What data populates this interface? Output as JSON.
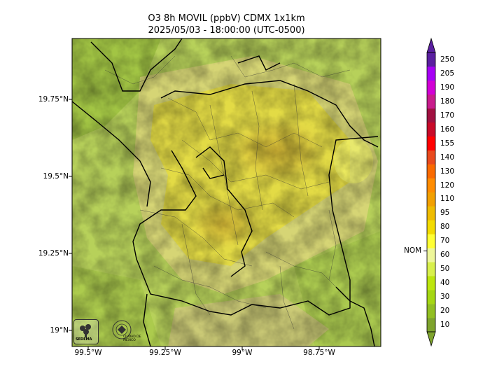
{
  "title_line1": "O3 8h MOVIL (ppbV) CDMX 1x1km",
  "title_line2": "2025/05/03 - 18:00:00 (UTC-0500)",
  "y_axis_labels": [
    "19.75°N",
    "19.5°N",
    "19.25°N",
    "19°N"
  ],
  "x_axis_labels": [
    "99.5°W",
    "99.25°W",
    "99°W",
    "98.75°W"
  ],
  "colorbar": {
    "ticks": [
      "10",
      "20",
      "30",
      "40",
      "50",
      "60",
      "70",
      "80",
      "95",
      "110",
      "120",
      "130",
      "140",
      "155",
      "160",
      "170",
      "180",
      "190",
      "205",
      "250"
    ],
    "colors": [
      "#7ea32d",
      "#92bf22",
      "#a5d713",
      "#bde60e",
      "#d8f04c",
      "#eef79a",
      "#ffff33",
      "#f3db00",
      "#efbc00",
      "#f2a000",
      "#ff8c00",
      "#fa6a00",
      "#e94a1e",
      "#ff0000",
      "#c80a28",
      "#a01040",
      "#c81c8c",
      "#d200d6",
      "#a600f5",
      "#5a1fa0"
    ],
    "reference_label": "NOM",
    "reference_value": 60
  },
  "logos": {
    "left_icon": "sedema-logo-icon",
    "left_text": "SEDEMA",
    "right_icon": "cdmx-seal-icon",
    "right_text": "CIUDAD DE MÉXICO"
  }
}
